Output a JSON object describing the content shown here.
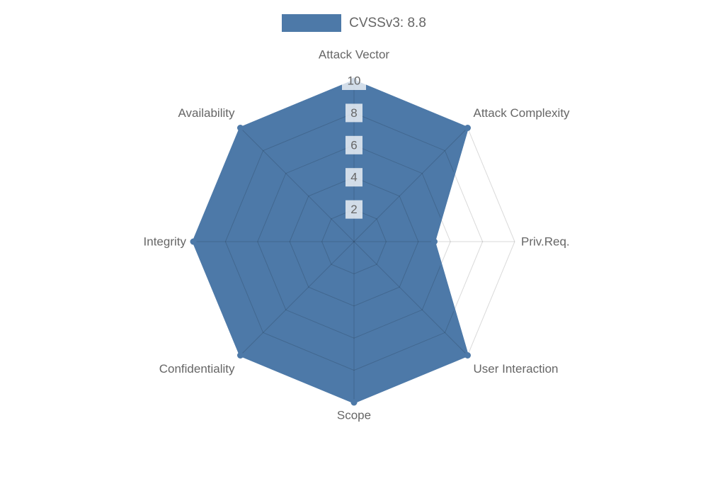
{
  "legend": {
    "label": "CVSSv3: 8.8",
    "swatch_color": "#4d79a8",
    "text_color": "#666666"
  },
  "chart_data": {
    "type": "radar",
    "categories": [
      "Attack Vector",
      "Attack Complexity",
      "Priv.Req.",
      "User Interaction",
      "Scope",
      "Confidentiality",
      "Integrity",
      "Availability"
    ],
    "series": [
      {
        "name": "CVSSv3: 8.8",
        "values": [
          10,
          10,
          5,
          10,
          10,
          10,
          10,
          10
        ],
        "fill_color": "#4d79a8",
        "border_color": "#4d79a8"
      }
    ],
    "ticks": [
      2,
      4,
      6,
      8,
      10
    ],
    "rmin": 0,
    "rmax": 10,
    "grid": true,
    "grid_shape": "polygon",
    "grid_color": "rgba(0,0,0,0.15)",
    "tick_color": "#666666",
    "tick_backdrop_color": "rgba(255,255,255,0.75)",
    "axis_label_color": "#666666",
    "legend_position": "top"
  }
}
